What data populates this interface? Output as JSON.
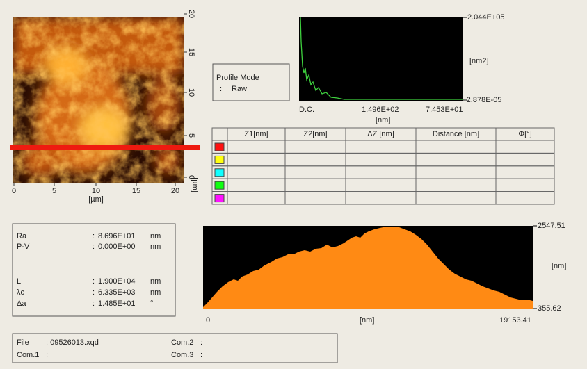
{
  "image_panel": {
    "x_ticks": [
      "0",
      "5",
      "10",
      "15",
      "20"
    ],
    "x_unit": "[µm]",
    "y_ticks": [
      "20",
      "15",
      "10",
      "5",
      "0"
    ],
    "y_unit": "[µm]"
  },
  "profile_mode": {
    "title": "Profile Mode",
    "sep": ":",
    "value": "Raw"
  },
  "spectrum": {
    "top_label": "2.044E+05",
    "unit_label": "[nm2]",
    "bottom_label": "-2.878E-05",
    "x_labels": [
      "D.C.",
      "1.496E+02",
      "7.453E+01"
    ],
    "x_unit": "[nm]"
  },
  "table": {
    "headers": [
      "Z1[nm]",
      "Z2[nm]",
      "ΔZ [nm]",
      "Distance [nm]",
      "Φ[°]"
    ],
    "row_colors": [
      "#ff1010",
      "#ffff10",
      "#10ffff",
      "#10ff10",
      "#ff10ff"
    ]
  },
  "stats": [
    {
      "label": "Ra",
      "sep": ":",
      "value": "8.696E+01",
      "unit": "nm"
    },
    {
      "label": "P-V",
      "sep": ":",
      "value": "0.000E+00",
      "unit": "nm"
    },
    {
      "label": "L",
      "sep": ":",
      "value": "1.900E+04",
      "unit": "nm"
    },
    {
      "label": "λc",
      "sep": ":",
      "value": "6.335E+03",
      "unit": "nm"
    },
    {
      "label": "Δa",
      "sep": ":",
      "value": "1.485E+01",
      "unit": "°"
    }
  ],
  "profile": {
    "top_label": "2547.51",
    "unit_label": "[nm]",
    "bottom_label": "355.62",
    "x_start": "0",
    "x_unit": "[nm]",
    "x_end": "19153.41"
  },
  "file_info": {
    "file_label": "File",
    "file_value": ": 09526013.xqd",
    "com1_label": "Com.1",
    "com1_value": ":",
    "com2_label": "Com.2",
    "com2_value": ":",
    "com3_label": "Com.3",
    "com3_value": ":"
  }
}
